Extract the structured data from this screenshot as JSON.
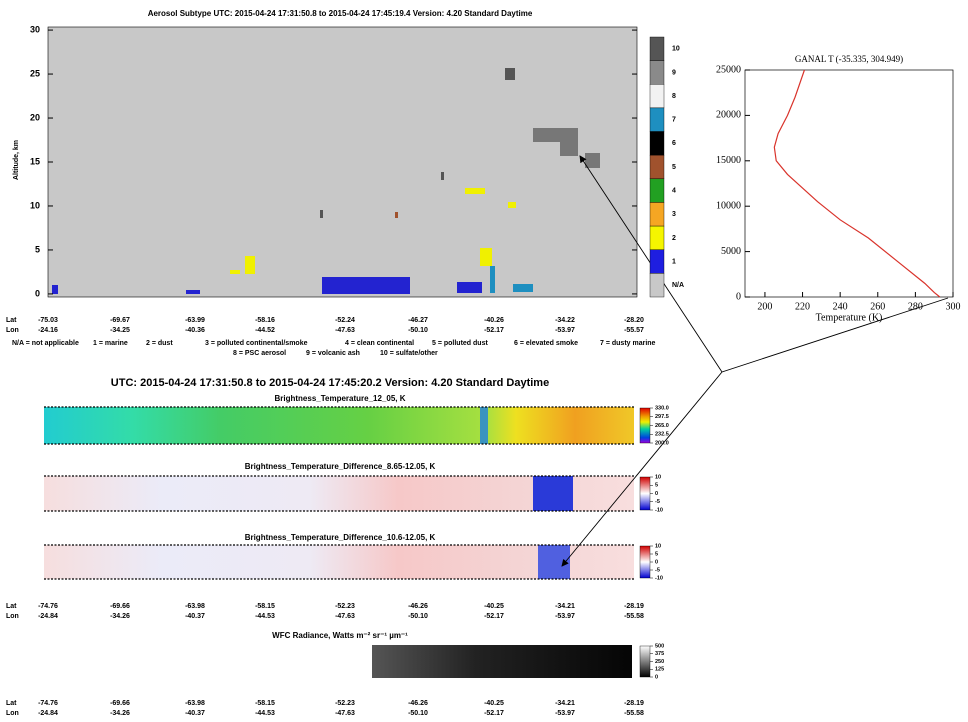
{
  "chart_data": [
    {
      "type": "curtain",
      "title": "Aerosol Subtype   UTC:  2015-04-24   17:31:50.8  to  2015-04-24   17:45:19.4   Version: 4.20  Standard Daytime",
      "y_label": "Altitude, km",
      "ylim": [
        -0.35,
        30.35
      ],
      "yticks": [
        0,
        5,
        10,
        15,
        20,
        25,
        30
      ],
      "classes": [
        {
          "label": "10",
          "color": "#555555"
        },
        {
          "label": "9",
          "color": "#8a8a8a"
        },
        {
          "label": "8",
          "color": "#f2f2f2"
        },
        {
          "label": "7",
          "color": "#1e8fc0"
        },
        {
          "label": "6",
          "color": "#000000"
        },
        {
          "label": "5",
          "color": "#a0522d"
        },
        {
          "label": "4",
          "color": "#22a022"
        },
        {
          "label": "3",
          "color": "#f5a623"
        },
        {
          "label": "2",
          "color": "#f5f500"
        },
        {
          "label": "1",
          "color": "#1e1ee0"
        },
        {
          "label": "N/A",
          "color": "#c8c8c8"
        }
      ],
      "lat_label": "Lat",
      "lon_label": "Lon",
      "lat": [
        "-75.03",
        "-69.67",
        "-63.99",
        "-58.16",
        "-52.24",
        "-46.27",
        "-40.26",
        "-34.22",
        "-28.20"
      ],
      "lon": [
        "-24.16",
        "-34.25",
        "-40.36",
        "-44.52",
        "-47.63",
        "-50.10",
        "-52.17",
        "-53.97",
        "-55.57"
      ],
      "legend": [
        "N/A = not applicable",
        "1 = marine",
        "2 = dust",
        "3 = polluted continental/smoke",
        "4 = clean continental",
        "5 = polluted dust",
        "6 = elevated smoke",
        "7 = dusty marine",
        "8 = PSC aerosol",
        "9 = volcanic ash",
        "10 = sulfate/other"
      ]
    },
    {
      "type": "line",
      "title": "GANAL T (-35.335, 304.949)",
      "x_label": "Temperature (K)",
      "xlim": [
        189.4,
        300
      ],
      "xticks": [
        200,
        220,
        240,
        260,
        280,
        300
      ],
      "ylim": [
        0,
        25000
      ],
      "yticks": [
        0,
        5000,
        10000,
        15000,
        20000,
        25000
      ],
      "series": [
        {
          "color": "#d9332b",
          "x": [
            293,
            290,
            285,
            270,
            255,
            240,
            228,
            220,
            212,
            206,
            205,
            207,
            212,
            216,
            221
          ],
          "values": [
            0,
            500,
            1500,
            4000,
            6500,
            8500,
            10500,
            12000,
            13500,
            15000,
            16500,
            18000,
            20000,
            22000,
            25000
          ]
        }
      ]
    },
    {
      "type": "image",
      "header": "UTC:  2015-04-24   17:31:50.8  to  2015-04-24   17:45:20.2   Version: 4.20  Standard Daytime",
      "title": "Brightness_Temperature_12_05, K",
      "clim": [
        200,
        330
      ],
      "cticks": [
        {
          "value": 330,
          "label": "330.0"
        },
        {
          "value": 297.5,
          "label": "297.5"
        },
        {
          "value": 265,
          "label": "265.0"
        },
        {
          "value": 232.5,
          "label": "232.5"
        },
        {
          "value": 200,
          "label": "200.0"
        }
      ]
    },
    {
      "type": "image",
      "title": "Brightness_Temperature_Difference_8.65-12.05, K",
      "clim": [
        -10,
        10
      ],
      "cticks": [
        10,
        5,
        0,
        -5,
        -10
      ]
    },
    {
      "type": "image",
      "title": "Brightness_Temperature_Difference_10.6-12.05, K",
      "clim": [
        -10,
        10
      ],
      "cticks": [
        10,
        5,
        0,
        -5,
        -10
      ],
      "lat_label": "Lat",
      "lon_label": "Lon",
      "lat": [
        "-74.76",
        "-69.66",
        "-63.98",
        "-58.15",
        "-52.23",
        "-46.26",
        "-40.25",
        "-34.21",
        "-28.19"
      ],
      "lon": [
        "-24.84",
        "-34.26",
        "-40.37",
        "-44.53",
        "-47.63",
        "-50.10",
        "-52.17",
        "-53.97",
        "-55.58"
      ]
    },
    {
      "type": "image",
      "title": "WFC Radiance, Watts m⁻² sr⁻¹ µm⁻¹",
      "clim": [
        0,
        500
      ],
      "cticks": [
        500,
        375,
        250,
        125,
        0
      ],
      "lat_label": "Lat",
      "lon_label": "Lon",
      "lat": [
        "-74.76",
        "-69.66",
        "-63.98",
        "-58.15",
        "-52.23",
        "-46.26",
        "-40.25",
        "-34.21",
        "-28.19"
      ],
      "lon": [
        "-24.84",
        "-34.26",
        "-40.37",
        "-44.53",
        "-47.63",
        "-50.10",
        "-52.17",
        "-53.97",
        "-55.58"
      ]
    }
  ]
}
